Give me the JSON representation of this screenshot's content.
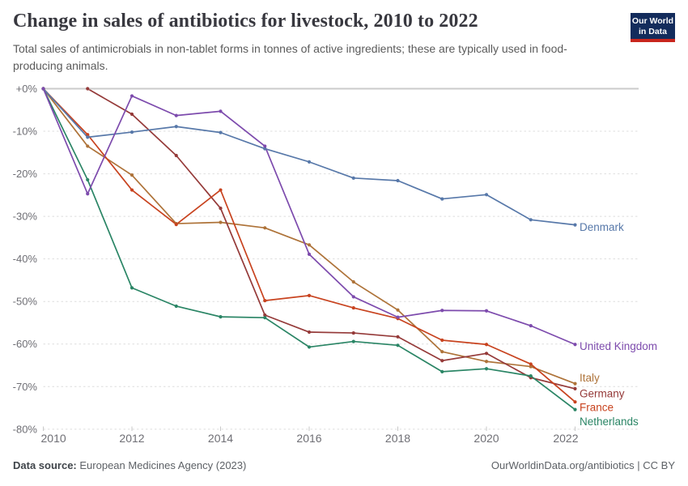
{
  "header": {
    "title": "Change in sales of antibiotics for livestock, 2010 to 2022",
    "subtitle": "Total sales of antimicrobials in non-tablet forms in tonnes of active ingredients; these are typically used in food-producing animals."
  },
  "logo": {
    "line1": "Our World",
    "line2": "in Data",
    "bg_color": "#132c5c",
    "bar_color": "#c9261d"
  },
  "footer": {
    "source_label": "Data source:",
    "source_value": "European Medicines Agency (2023)",
    "credit": "OurWorldinData.org/antibiotics | CC BY"
  },
  "chart_data": {
    "type": "line",
    "title": "Change in sales of antibiotics for livestock, 2010 to 2022",
    "x": [
      2010,
      2011,
      2012,
      2013,
      2014,
      2015,
      2016,
      2017,
      2018,
      2019,
      2020,
      2021,
      2022
    ],
    "xticks": [
      2010,
      2012,
      2014,
      2016,
      2018,
      2020,
      2022
    ],
    "yticks": {
      "labels": [
        "+0%",
        "-10%",
        "-20%",
        "-30%",
        "-40%",
        "-50%",
        "-60%",
        "-70%",
        "-80%"
      ],
      "values": [
        0,
        -10,
        -20,
        -30,
        -40,
        -50,
        -60,
        -70,
        -80
      ]
    },
    "ylim": [
      0,
      -80
    ],
    "grid": "horizontal dashed",
    "legend": "line-end labels",
    "unit": "% change vs 2010",
    "series": [
      {
        "name": "Denmark",
        "color": "#5778A9",
        "label_dy": 3,
        "values": [
          0,
          -11.4,
          -10.2,
          -8.9,
          -10.3,
          -14.1,
          -17.2,
          -21.0,
          -21.6,
          -25.9,
          -24.9,
          -30.8,
          -32.0
        ]
      },
      {
        "name": "United Kingdom",
        "color": "#7D4BAD",
        "label_dy": 2,
        "values": [
          0,
          -24.7,
          -1.7,
          -6.3,
          -5.3,
          -13.5,
          -38.9,
          -48.9,
          -53.7,
          -52.1,
          -52.2,
          -55.7,
          -60.1
        ]
      },
      {
        "name": "Italy",
        "color": "#AE7339",
        "label_dy": -7,
        "values": [
          0,
          -13.5,
          -20.3,
          -31.7,
          -31.4,
          -32.7,
          -36.7,
          -45.4,
          -52.0,
          -61.8,
          -64.1,
          -65.3,
          -69.3
        ]
      },
      {
        "name": "Germany",
        "color": "#953A39",
        "label_dy": 6,
        "values": [
          0,
          0,
          -6.0,
          -15.7,
          -28.1,
          -53.2,
          -57.2,
          -57.4,
          -58.3,
          -63.9,
          -62.2,
          -67.9,
          -70.5
        ]
      },
      {
        "name": "France",
        "color": "#C8431F",
        "label_dy": 7,
        "values": [
          0,
          -10.8,
          -23.8,
          -31.9,
          -23.8,
          -49.8,
          -48.6,
          -51.5,
          -54.0,
          -59.1,
          -60.1,
          -64.7,
          -73.6
        ]
      },
      {
        "name": "Netherlands",
        "color": "#2A8565",
        "label_dy": 15,
        "values": [
          0,
          -21.4,
          -46.8,
          -51.1,
          -53.6,
          -53.8,
          -60.7,
          -59.4,
          -60.3,
          -66.5,
          -65.8,
          -67.5,
          -75.4
        ]
      }
    ],
    "draw_order": [
      2,
      3,
      4,
      5,
      0,
      1
    ]
  }
}
